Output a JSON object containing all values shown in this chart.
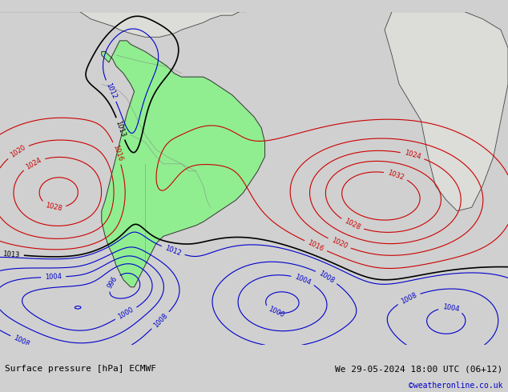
{
  "title_left": "Surface pressure [hPa] ECMWF",
  "title_right": "We 29-05-2024 18:00 UTC (06+12)",
  "copyright": "©weatheronline.co.uk",
  "bg_color": "#d0d0d0",
  "land_color": "#dcdcd8",
  "sa_color": "#90ee90",
  "bottom_bg": "#c0c0c0",
  "copyright_color": "#0000cc",
  "contour_blue": "#0000cc",
  "contour_black": "#000000",
  "contour_red": "#cc0000"
}
